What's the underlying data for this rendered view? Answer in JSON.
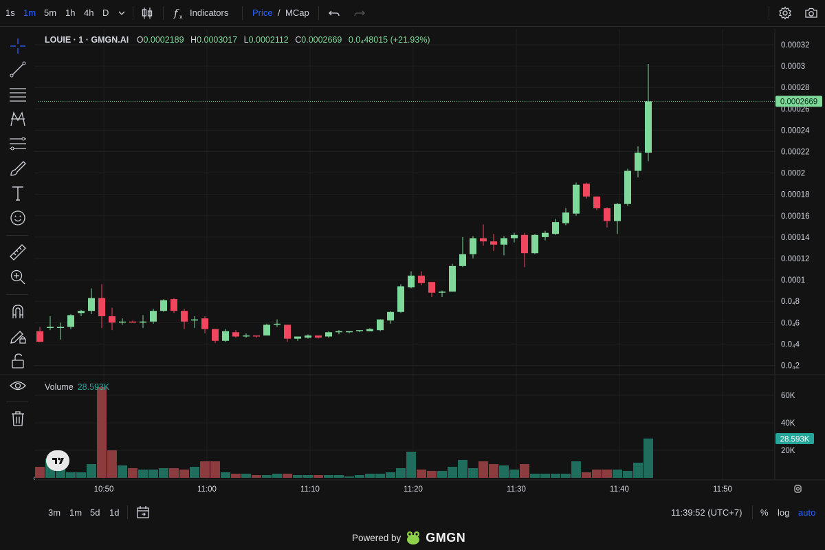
{
  "toolbar": {
    "intervals": [
      "1s",
      "1m",
      "5m",
      "1h",
      "4h",
      "D"
    ],
    "active_interval": "1m",
    "indicators_label": "Indicators",
    "price_label": "Price",
    "slash": "/",
    "mcap_label": "MCap"
  },
  "legend": {
    "symbol": "LOUIE · 1 · GMGN.AI",
    "o_label": "O",
    "o": "0.0002189",
    "h_label": "H",
    "h": "0.0003017",
    "l_label": "L",
    "l": "0.0002112",
    "c_label": "C",
    "c": "0.0002669",
    "change": "0.0₄48015 (+21.93%)"
  },
  "volume_legend": {
    "label": "Volume",
    "value": "28.593K"
  },
  "price_axis": {
    "ticks": [
      "0.00032",
      "0.0003",
      "0.00028",
      "0.00026",
      "0.00024",
      "0.00022",
      "0.0002",
      "0.00018",
      "0.00016",
      "0.00014",
      "0.00012",
      "0.0001",
      "0.0₄8",
      "0.0₄6",
      "0.0₄4",
      "0.0₄2"
    ],
    "last_price_label": "0.0002669"
  },
  "volume_axis": {
    "ticks": [
      "60K",
      "40K",
      "20K"
    ],
    "last_volume_label": "28.593K"
  },
  "time_axis": {
    "ticks": [
      "10:50",
      "11:00",
      "11:10",
      "11:20",
      "11:30",
      "11:40",
      "11:50"
    ]
  },
  "bottom_bar": {
    "ranges": [
      "3m",
      "1m",
      "5d",
      "1d"
    ],
    "clock": "11:39:52 (UTC+7)",
    "percent_label": "%",
    "log_label": "log",
    "auto_label": "auto"
  },
  "footer": {
    "powered_by": "Powered by",
    "brand": "GMGN"
  },
  "colors": {
    "up": "#7ed99a",
    "down": "#f0475f",
    "vol_up": "#1f6e5d",
    "vol_down": "#8c3b3e",
    "accent": "#2962ff",
    "grid": "#1f1f1f"
  },
  "chart_data": {
    "type": "candlestick",
    "x_start": "10:44",
    "x_step_minutes": 1,
    "price_unit_scale": 1e-05,
    "y_range": [
      1.5,
      33
    ],
    "volume_range_k": [
      0,
      70
    ],
    "candles": [
      [
        5.2,
        5.6,
        4.2,
        4.2,
        8
      ],
      [
        5.6,
        6.6,
        5.3,
        5.6,
        14
      ],
      [
        5.5,
        6.0,
        4.4,
        5.6,
        11
      ],
      [
        5.6,
        6.8,
        5.4,
        6.7,
        4
      ],
      [
        6.9,
        7.2,
        6.6,
        7.1,
        4
      ],
      [
        7.1,
        9.2,
        6.8,
        8.3,
        10
      ],
      [
        8.3,
        9.6,
        5.5,
        6.6,
        66
      ],
      [
        6.6,
        7.4,
        5.3,
        6.0,
        20
      ],
      [
        6.1,
        6.4,
        5.8,
        6.1,
        9
      ],
      [
        6.1,
        6.2,
        6.0,
        6.0,
        7
      ],
      [
        6.0,
        6.7,
        5.5,
        6.1,
        6
      ],
      [
        6.1,
        7.3,
        5.9,
        7.1,
        6
      ],
      [
        7.1,
        8.2,
        7.0,
        8.1,
        7
      ],
      [
        8.2,
        8.3,
        6.9,
        7.1,
        7
      ],
      [
        7.1,
        7.3,
        5.4,
        6.1,
        6
      ],
      [
        6.2,
        6.6,
        5.5,
        6.3,
        8
      ],
      [
        6.4,
        6.6,
        5.0,
        5.4,
        12
      ],
      [
        5.4,
        5.4,
        4.1,
        4.3,
        12
      ],
      [
        4.3,
        5.4,
        4.2,
        5.2,
        4
      ],
      [
        5.1,
        5.3,
        4.6,
        4.7,
        3
      ],
      [
        4.8,
        5.0,
        4.6,
        4.8,
        3
      ],
      [
        4.8,
        4.8,
        4.6,
        4.7,
        2
      ],
      [
        4.8,
        5.9,
        4.8,
        5.8,
        2
      ],
      [
        5.8,
        6.3,
        5.6,
        5.9,
        3
      ],
      [
        5.8,
        5.8,
        4.2,
        4.5,
        3
      ],
      [
        4.5,
        4.7,
        4.3,
        4.7,
        2
      ],
      [
        4.6,
        4.9,
        4.5,
        4.8,
        2
      ],
      [
        4.8,
        4.8,
        4.5,
        4.6,
        2
      ],
      [
        4.7,
        5.2,
        4.6,
        5.1,
        2
      ],
      [
        5.1,
        5.3,
        4.9,
        5.2,
        2
      ],
      [
        5.1,
        5.2,
        5.0,
        5.2,
        1
      ],
      [
        5.2,
        5.2,
        5.1,
        5.3,
        2
      ],
      [
        5.2,
        5.5,
        5.2,
        5.4,
        3
      ],
      [
        5.3,
        6.3,
        5.2,
        6.3,
        3
      ],
      [
        6.2,
        7.1,
        5.9,
        7.0,
        4
      ],
      [
        7.0,
        9.6,
        6.9,
        9.4,
        7
      ],
      [
        9.3,
        10.8,
        9.2,
        10.4,
        19
      ],
      [
        10.4,
        10.8,
        9.5,
        9.7,
        6
      ],
      [
        9.8,
        9.8,
        8.4,
        8.8,
        5
      ],
      [
        8.8,
        9.0,
        8.4,
        8.9,
        5
      ],
      [
        8.9,
        11.5,
        8.9,
        11.3,
        8
      ],
      [
        11.3,
        14.0,
        11.2,
        12.4,
        13
      ],
      [
        12.4,
        14.1,
        12.0,
        13.9,
        7
      ],
      [
        13.9,
        15.2,
        13.2,
        13.6,
        12
      ],
      [
        13.6,
        14.3,
        12.7,
        13.3,
        10
      ],
      [
        13.3,
        14.1,
        12.3,
        13.9,
        9
      ],
      [
        13.9,
        14.4,
        13.5,
        14.2,
        6
      ],
      [
        14.2,
        14.4,
        11.2,
        12.5,
        10
      ],
      [
        12.5,
        14.3,
        12.4,
        14.2,
        3
      ],
      [
        14.0,
        14.6,
        13.7,
        14.4,
        3
      ],
      [
        14.3,
        15.7,
        14.2,
        15.4,
        3
      ],
      [
        15.3,
        16.7,
        15.1,
        16.3,
        3
      ],
      [
        16.2,
        19.1,
        16.0,
        18.9,
        12
      ],
      [
        19.0,
        19.1,
        17.6,
        17.8,
        4
      ],
      [
        17.8,
        17.8,
        16.5,
        16.7,
        6
      ],
      [
        16.7,
        16.8,
        14.9,
        15.5,
        6
      ],
      [
        15.5,
        17.2,
        14.3,
        17.1,
        6
      ],
      [
        17.1,
        20.4,
        16.9,
        20.2,
        5
      ],
      [
        20.2,
        22.5,
        19.6,
        21.9,
        11
      ],
      [
        21.9,
        30.2,
        21.1,
        26.7,
        28.6
      ]
    ]
  }
}
